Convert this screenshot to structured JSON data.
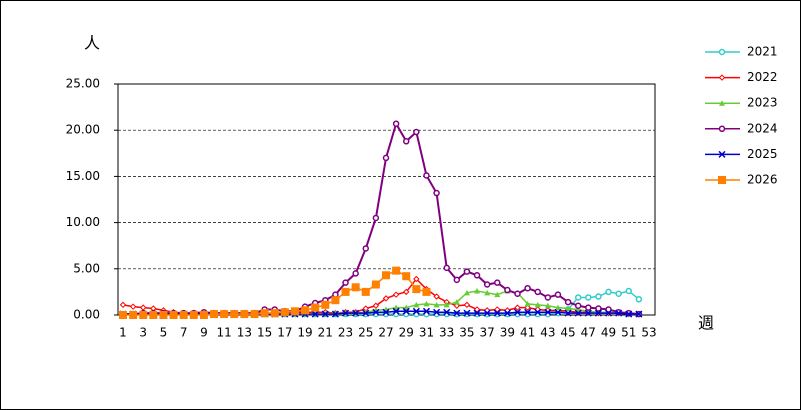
{
  "chart_data": {
    "type": "line",
    "y_label": "人",
    "x_label": "週",
    "categories": [
      1,
      null,
      3,
      null,
      5,
      null,
      7,
      null,
      9,
      null,
      11,
      null,
      13,
      null,
      15,
      null,
      17,
      null,
      19,
      null,
      21,
      null,
      23,
      null,
      25,
      null,
      27,
      null,
      29,
      null,
      31,
      null,
      33,
      null,
      35,
      null,
      37,
      null,
      39,
      null,
      41,
      null,
      43,
      null,
      45,
      null,
      47,
      null,
      49,
      null,
      51,
      null,
      53
    ],
    "ylim": [
      0,
      25
    ],
    "yticks": [
      {
        "value": 0,
        "label": "0.00"
      },
      {
        "value": 5,
        "label": "5.00"
      },
      {
        "value": 10,
        "label": "10.00"
      },
      {
        "value": 15,
        "label": "15.00"
      },
      {
        "value": 20,
        "label": "20.00"
      },
      {
        "value": 25,
        "label": "25.00"
      }
    ],
    "grid": true,
    "legend": "right",
    "series": [
      {
        "name": "2021",
        "color": "#33cccc",
        "marker": "circle",
        "values": [
          0.1,
          0.1,
          0.1,
          0.1,
          0.1,
          0.1,
          0.1,
          0.1,
          0.1,
          0.1,
          0.1,
          0.1,
          0.1,
          0.1,
          0.1,
          0.1,
          0.1,
          0.1,
          0.1,
          0.1,
          0.1,
          0.1,
          0.1,
          0.1,
          0.1,
          0.1,
          0.1,
          0.1,
          0.1,
          0.1,
          0.1,
          0.1,
          0.1,
          0.1,
          0.1,
          0.1,
          0.1,
          0.1,
          0.1,
          0.1,
          0.1,
          0.1,
          0.1,
          0.2,
          0.6,
          1.9,
          1.9,
          2.0,
          2.5,
          2.3,
          2.6,
          1.7,
          null
        ]
      },
      {
        "name": "2022",
        "color": "#ff0000",
        "marker": "diamond",
        "values": [
          1.1,
          0.9,
          0.8,
          0.7,
          0.5,
          0.3,
          0.2,
          0.1,
          0.1,
          0.1,
          0.1,
          0.1,
          0.1,
          0.2,
          0.2,
          0.2,
          0.3,
          0.3,
          0.3,
          0.3,
          0.3,
          0.2,
          0.3,
          0.3,
          0.7,
          1.0,
          1.8,
          2.2,
          2.5,
          3.9,
          2.8,
          2.0,
          1.4,
          1.0,
          1.1,
          0.6,
          0.5,
          0.6,
          0.5,
          0.8,
          0.8,
          0.6,
          0.5,
          0.5,
          0.4,
          0.3,
          0.3,
          0.2,
          0.2,
          0.2,
          0.1,
          0.1,
          null
        ]
      },
      {
        "name": "2023",
        "color": "#66cc33",
        "marker": "triangle",
        "values": [
          0.1,
          0.1,
          0.1,
          0.1,
          0.1,
          0.1,
          0.1,
          0.1,
          0.1,
          0.1,
          0.1,
          0.1,
          0.1,
          0.1,
          0.1,
          0.1,
          0.1,
          0.1,
          0.1,
          0.1,
          0.1,
          0.2,
          0.2,
          0.2,
          0.3,
          0.5,
          0.6,
          0.8,
          0.8,
          1.1,
          1.2,
          1.1,
          1.1,
          1.4,
          2.4,
          2.6,
          2.4,
          2.2,
          2.6,
          2.4,
          1.2,
          1.1,
          1.0,
          0.8,
          0.7,
          0.6,
          0.4,
          0.3,
          0.3,
          0.2,
          0.1,
          0.1,
          null
        ]
      },
      {
        "name": "2024",
        "color": "#800080",
        "marker": "circle",
        "values": [
          0.1,
          0.1,
          0.2,
          0.2,
          0.2,
          0.2,
          0.2,
          0.2,
          0.3,
          0.2,
          0.2,
          0.2,
          0.2,
          0.2,
          0.6,
          0.6,
          0.4,
          0.4,
          0.9,
          1.3,
          1.6,
          2.2,
          3.5,
          4.5,
          7.2,
          10.5,
          17.0,
          20.7,
          18.8,
          19.8,
          15.1,
          13.2,
          5.1,
          3.8,
          4.7,
          4.3,
          3.3,
          3.5,
          2.7,
          2.3,
          2.9,
          2.5,
          1.9,
          2.2,
          1.4,
          1.0,
          0.8,
          0.7,
          0.6,
          0.3,
          0.2,
          0.1,
          null
        ]
      },
      {
        "name": "2025",
        "color": "#0000cc",
        "marker": "x",
        "values": [
          0.1,
          0.1,
          0.1,
          0.1,
          0.1,
          0.1,
          0.1,
          0.1,
          0.1,
          0.1,
          0.1,
          0.1,
          0.1,
          0.1,
          0.1,
          0.1,
          0.1,
          0.1,
          0.1,
          0.1,
          0.1,
          0.1,
          0.2,
          0.2,
          0.2,
          0.3,
          0.3,
          0.4,
          0.4,
          0.4,
          0.4,
          0.3,
          0.3,
          0.2,
          0.2,
          0.2,
          0.2,
          0.2,
          0.2,
          0.3,
          0.3,
          0.3,
          0.3,
          0.3,
          0.2,
          0.2,
          0.2,
          0.2,
          0.2,
          0.2,
          0.1,
          0.1,
          null
        ]
      },
      {
        "name": "2026",
        "color": "#ff8000",
        "marker": "square",
        "values": [
          0.0,
          0.0,
          0.0,
          0.0,
          0.0,
          0.0,
          0.0,
          0.0,
          0.0,
          0.1,
          0.1,
          0.1,
          0.1,
          0.1,
          0.2,
          0.2,
          0.3,
          0.4,
          0.5,
          0.8,
          1.1,
          1.6,
          2.5,
          3.0,
          2.5,
          3.3,
          4.3,
          4.8,
          4.2,
          2.8,
          2.5,
          null,
          null,
          null,
          null,
          null,
          null,
          null,
          null,
          null,
          null,
          null,
          null,
          null,
          null,
          null,
          null,
          null,
          null,
          null,
          null,
          null,
          null
        ]
      }
    ]
  }
}
